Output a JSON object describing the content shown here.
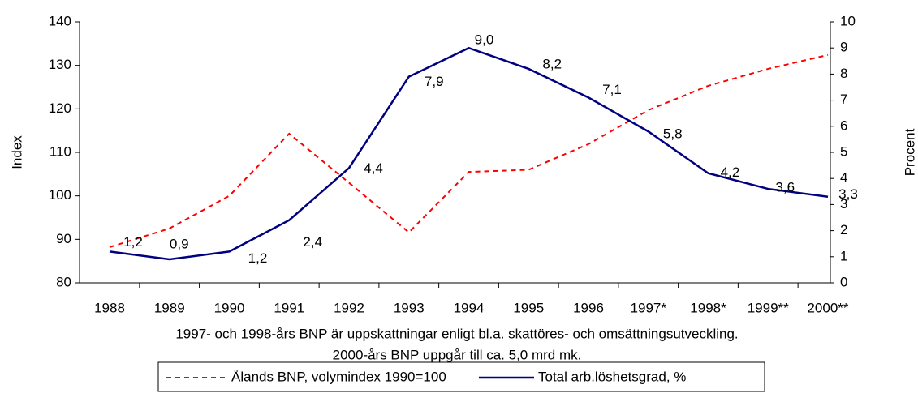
{
  "chart_data": {
    "type": "line",
    "categories": [
      "1988",
      "1989",
      "1990",
      "1991",
      "1992",
      "1993",
      "1994",
      "1995",
      "1996",
      "1997*",
      "1998*",
      "1999**",
      "2000**"
    ],
    "series": [
      {
        "name": "Ålands BNP, volymindex 1990=100",
        "color": "#ff0000",
        "dashed": true,
        "axis": "y",
        "values": [
          88.2,
          92.5,
          100,
          114.3,
          103,
          91.6,
          105.5,
          106,
          111.9,
          119.7,
          125.3,
          129.2,
          132.4
        ]
      },
      {
        "name": "Total arb.löshetsgrad, %",
        "color": "#000080",
        "axis": "y2",
        "values": [
          1.2,
          0.9,
          1.2,
          2.4,
          4.4,
          7.9,
          9.0,
          8.2,
          7.1,
          5.8,
          4.2,
          3.6,
          3.3
        ],
        "value_labels": [
          "1,2",
          "0,9",
          "1,2",
          "2,4",
          "4,4",
          "7,9",
          "9,0",
          "8,2",
          "7,1",
          "5,8",
          "4,2",
          "3,6",
          "3,3"
        ]
      }
    ],
    "ylabel": "Index",
    "y2label": "Procent",
    "ylim": [
      80,
      140
    ],
    "yticks": [
      80,
      90,
      100,
      110,
      120,
      130,
      140
    ],
    "y2lim": [
      0,
      10
    ],
    "y2ticks": [
      0,
      1,
      2,
      3,
      4,
      5,
      6,
      7,
      8,
      9,
      10
    ],
    "notes": [
      "1997- och 1998-års BNP är uppskattningar enligt bl.a. skattöres- och omsättningsutveckling.",
      "2000-års BNP uppgår till ca. 5,0 mrd mk."
    ],
    "legend": "bottom"
  }
}
